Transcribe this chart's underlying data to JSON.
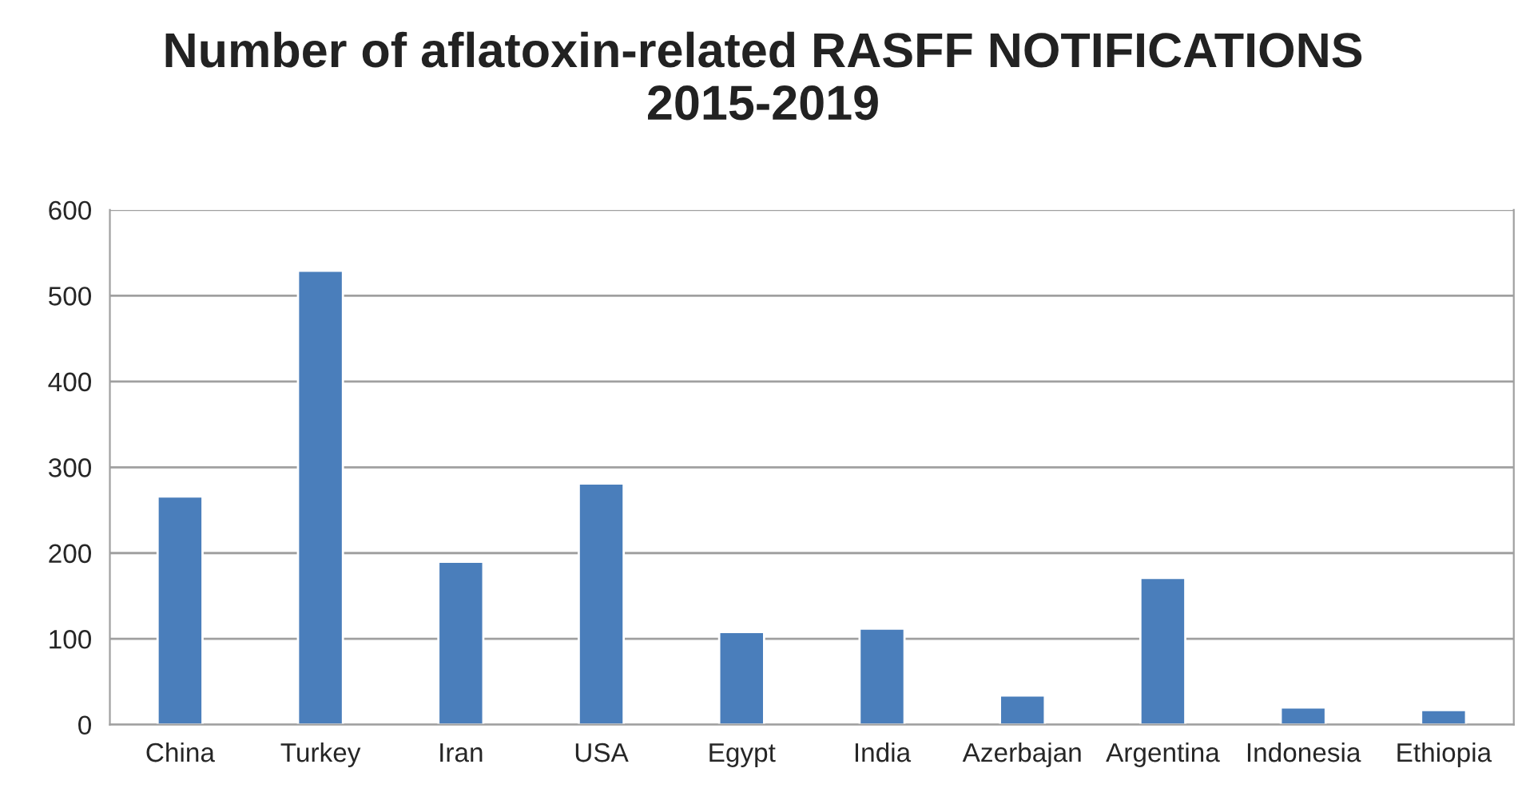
{
  "chart_data": {
    "type": "bar",
    "title": "Number of aflatoxin-related RASFF NOTIFICATIONS\n2015-2019",
    "categories": [
      "China",
      "Turkey",
      "Iran",
      "USA",
      "Egypt",
      "India",
      "Azerbajan",
      "Argentina",
      "Indonesia",
      "Ethiopia"
    ],
    "values": [
      266,
      529,
      190,
      281,
      108,
      112,
      34,
      171,
      20,
      17
    ],
    "color": "#4a7ebb",
    "ylim": [
      0,
      600
    ],
    "yticks": [
      0,
      100,
      200,
      300,
      400,
      500,
      600
    ],
    "grid": "y",
    "legend": false
  }
}
